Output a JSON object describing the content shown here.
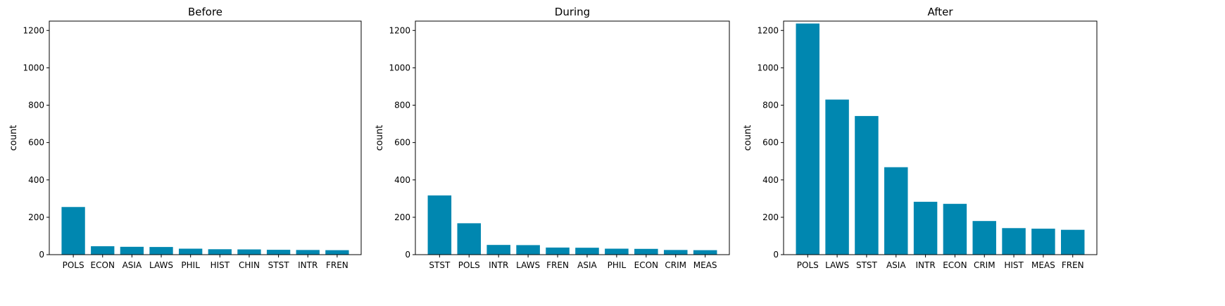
{
  "bar_color": "#0087B0",
  "chart_data": [
    {
      "type": "bar",
      "title": "Before",
      "xlabel": "",
      "ylabel": "count",
      "ylim": [
        0,
        1250
      ],
      "yticks": [
        0,
        200,
        400,
        600,
        800,
        1000,
        1200
      ],
      "categories": [
        "POLS",
        "ECON",
        "ASIA",
        "LAWS",
        "PHIL",
        "HIST",
        "CHIN",
        "STST",
        "INTR",
        "FREN"
      ],
      "values": [
        255,
        45,
        42,
        41,
        32,
        29,
        28,
        26,
        25,
        24
      ]
    },
    {
      "type": "bar",
      "title": "During",
      "xlabel": "",
      "ylabel": "count",
      "ylim": [
        0,
        1250
      ],
      "yticks": [
        0,
        200,
        400,
        600,
        800,
        1000,
        1200
      ],
      "categories": [
        "STST",
        "POLS",
        "INTR",
        "LAWS",
        "FREN",
        "ASIA",
        "PHIL",
        "ECON",
        "CRIM",
        "MEAS"
      ],
      "values": [
        317,
        168,
        52,
        51,
        38,
        37,
        32,
        31,
        25,
        24
      ]
    },
    {
      "type": "bar",
      "title": "After",
      "xlabel": "",
      "ylabel": "count",
      "ylim": [
        0,
        1250
      ],
      "yticks": [
        0,
        200,
        400,
        600,
        800,
        1000,
        1200
      ],
      "categories": [
        "POLS",
        "LAWS",
        "STST",
        "ASIA",
        "INTR",
        "ECON",
        "CRIM",
        "HIST",
        "MEAS",
        "FREN"
      ],
      "values": [
        1237,
        830,
        742,
        468,
        283,
        272,
        180,
        142,
        139,
        133
      ]
    }
  ]
}
